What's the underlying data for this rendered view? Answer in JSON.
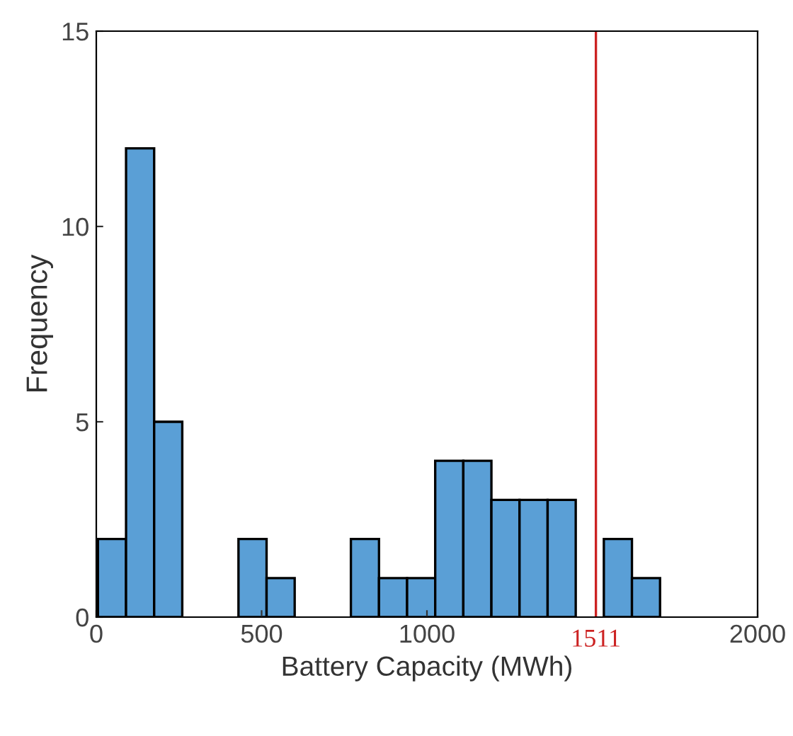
{
  "chart_data": {
    "type": "histogram",
    "xlabel": "Battery Capacity (MWh)",
    "ylabel": "Frequency",
    "bins": [
      5,
      90,
      175,
      260,
      345,
      430,
      515,
      600,
      685,
      770,
      855,
      940,
      1025,
      1110,
      1195,
      1280,
      1365,
      1450,
      1535,
      1620,
      1705
    ],
    "values": [
      2,
      12,
      5,
      0,
      0,
      2,
      1,
      0,
      0,
      2,
      1,
      1,
      4,
      4,
      3,
      3,
      3,
      0,
      2,
      1
    ],
    "color": "#5a9fd6",
    "xlim": [
      0,
      2000
    ],
    "xticks": [
      0,
      500,
      1000,
      2000
    ],
    "ylim": [
      0,
      15
    ],
    "yticks": [
      0,
      5,
      10,
      15
    ],
    "ref_lines": [
      {
        "axis": "x",
        "value": 1511,
        "label": "1511",
        "color": "#cc2222"
      }
    ],
    "grid": false
  }
}
